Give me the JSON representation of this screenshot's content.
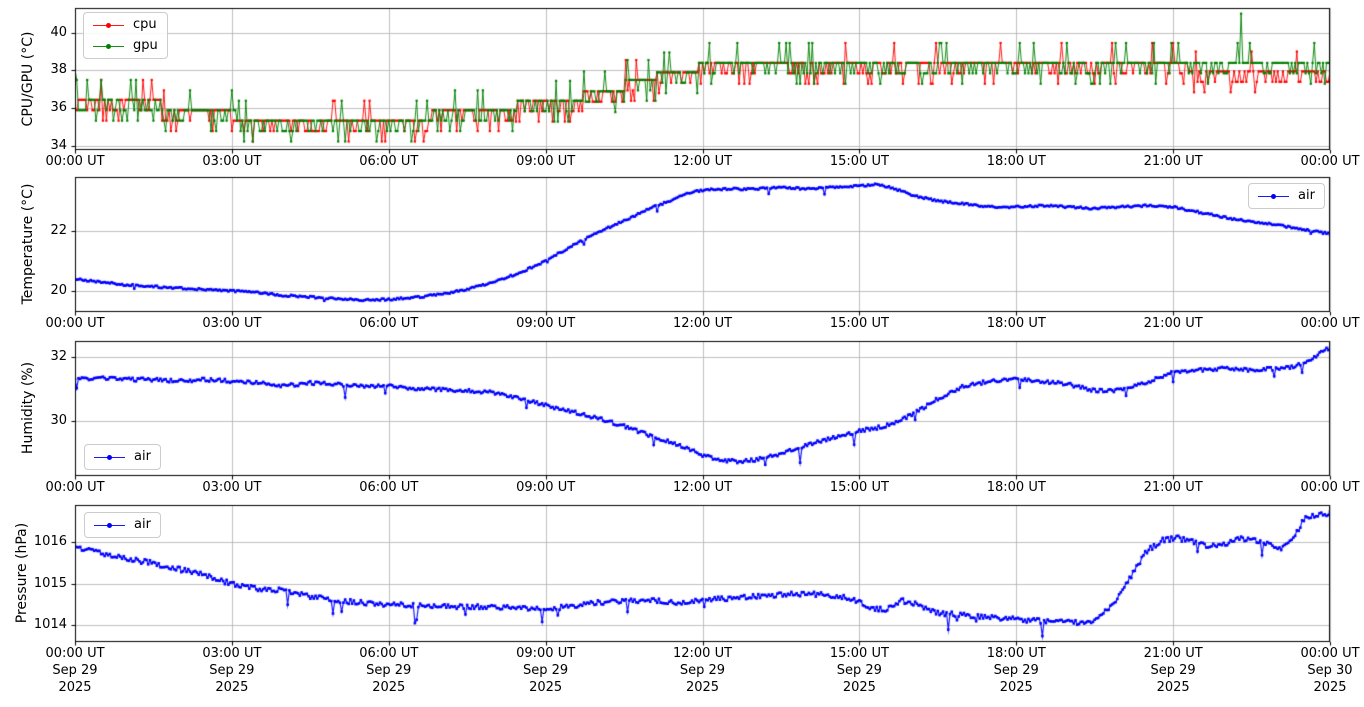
{
  "chart_data": {
    "type": "line",
    "title": "",
    "colors": {
      "cpu": "#ff0000",
      "gpu": "#008000",
      "air": "#0000ff",
      "grid": "#b0b0b0",
      "axis": "#000000",
      "background": "#ffffff",
      "legend_border": "#cccccc"
    },
    "x_axis": {
      "label": "",
      "range_hours": [
        0,
        24
      ],
      "tick_hours": [
        0,
        3,
        6,
        9,
        12,
        15,
        18,
        21,
        24
      ],
      "tick_labels": [
        "00:00 UT",
        "03:00 UT",
        "06:00 UT",
        "09:00 UT",
        "12:00 UT",
        "15:00 UT",
        "18:00 UT",
        "21:00 UT",
        "00:00 UT"
      ],
      "bottom_dates": [
        "Sep 29",
        "Sep 29",
        "Sep 29",
        "Sep 29",
        "Sep 29",
        "Sep 29",
        "Sep 29",
        "Sep 29",
        "Sep 30"
      ],
      "bottom_years": [
        "2025",
        "2025",
        "2025",
        "2025",
        "2025",
        "2025",
        "2025",
        "2025",
        "2025"
      ]
    },
    "panels": [
      {
        "id": "cpu-gpu",
        "ylabel": "CPU/GPU (°C)",
        "ylim": [
          33.8,
          41.3
        ],
        "yticks": [
          34,
          36,
          38,
          40
        ],
        "grid": true,
        "legend": {
          "position": "upper-left",
          "entries": [
            {
              "label": "cpu",
              "color": "#ff0000"
            },
            {
              "label": "gpu",
              "color": "#008000"
            }
          ]
        },
        "series": [
          {
            "name": "cpu",
            "color": "#ff0000",
            "style": "quantized",
            "sample_minutes": 2,
            "baseline_steps": [
              [
                0,
                36.45
              ],
              [
                1.7,
                35.9
              ],
              [
                3.1,
                35.35
              ],
              [
                6.8,
                35.9
              ],
              [
                8.4,
                36.4
              ],
              [
                9.7,
                36.9
              ],
              [
                10.5,
                37.5
              ],
              [
                11.1,
                37.9
              ],
              [
                11.9,
                38.4
              ],
              [
                21.3,
                37.95
              ]
            ],
            "dip_step": 0.55,
            "dip_prob": 0.26,
            "double_dip_prob": 0.08,
            "spike_step": 1.05,
            "spike_prob": 0.035,
            "seed": 7
          },
          {
            "name": "gpu",
            "color": "#008000",
            "style": "quantized",
            "sample_minutes": 2,
            "baseline_steps": [
              [
                0,
                36.45
              ],
              [
                1.7,
                35.9
              ],
              [
                3.1,
                35.35
              ],
              [
                6.8,
                35.9
              ],
              [
                8.4,
                36.4
              ],
              [
                9.7,
                36.9
              ],
              [
                10.5,
                37.5
              ],
              [
                11.1,
                37.9
              ],
              [
                11.9,
                38.4
              ]
            ],
            "dip_step": 0.55,
            "dip_prob": 0.26,
            "double_dip_prob": 0.08,
            "spike_step": 1.05,
            "spike_prob": 0.035,
            "seed": 13,
            "extra_points": [
              [
                0,
                38.05
              ],
              [
                22.3,
                41.0
              ]
            ]
          }
        ]
      },
      {
        "id": "temperature",
        "ylabel": "Temperature (°C)",
        "ylim": [
          19.3,
          23.8
        ],
        "yticks": [
          20,
          22
        ],
        "grid": true,
        "legend": {
          "position": "upper-right",
          "entries": [
            {
              "label": "air",
              "color": "#0000ff"
            }
          ]
        },
        "series": [
          {
            "name": "air",
            "color": "#0000ff",
            "style": "smooth",
            "sample_minutes": 2,
            "keypoints": [
              [
                0,
                20.4
              ],
              [
                0.5,
                20.3
              ],
              [
                1,
                20.2
              ],
              [
                1.5,
                20.15
              ],
              [
                2,
                20.1
              ],
              [
                2.5,
                20.05
              ],
              [
                3,
                20.0
              ],
              [
                3.5,
                19.95
              ],
              [
                4,
                19.85
              ],
              [
                4.5,
                19.8
              ],
              [
                5,
                19.75
              ],
              [
                5.5,
                19.7
              ],
              [
                6,
                19.72
              ],
              [
                6.5,
                19.78
              ],
              [
                7,
                19.9
              ],
              [
                7.5,
                20.05
              ],
              [
                8,
                20.3
              ],
              [
                8.5,
                20.6
              ],
              [
                9,
                21.0
              ],
              [
                9.5,
                21.5
              ],
              [
                10,
                21.95
              ],
              [
                10.5,
                22.35
              ],
              [
                11,
                22.75
              ],
              [
                11.5,
                23.1
              ],
              [
                11.8,
                23.3
              ],
              [
                12.2,
                23.4
              ],
              [
                13,
                23.4
              ],
              [
                13.5,
                23.45
              ],
              [
                14,
                23.4
              ],
              [
                14.5,
                23.45
              ],
              [
                15,
                23.5
              ],
              [
                15.3,
                23.55
              ],
              [
                15.6,
                23.45
              ],
              [
                16,
                23.2
              ],
              [
                16.5,
                23.0
              ],
              [
                17,
                22.9
              ],
              [
                17.5,
                22.8
              ],
              [
                18,
                22.8
              ],
              [
                18.5,
                22.85
              ],
              [
                19,
                22.8
              ],
              [
                19.5,
                22.75
              ],
              [
                20,
                22.8
              ],
              [
                20.5,
                22.85
              ],
              [
                21,
                22.8
              ],
              [
                21.3,
                22.7
              ],
              [
                21.7,
                22.55
              ],
              [
                22,
                22.45
              ],
              [
                22.5,
                22.3
              ],
              [
                23,
                22.2
              ],
              [
                23.5,
                22.05
              ],
              [
                24,
                21.9
              ]
            ],
            "noise": 0.035,
            "spike_down": 0.15,
            "spike_prob": 0.01,
            "seed": 21
          }
        ]
      },
      {
        "id": "humidity",
        "ylabel": "Humidity (%)",
        "ylim": [
          28.3,
          32.5
        ],
        "yticks": [
          30,
          32
        ],
        "grid": true,
        "legend": {
          "position": "lower-left",
          "entries": [
            {
              "label": "air",
              "color": "#0000ff"
            }
          ]
        },
        "series": [
          {
            "name": "air",
            "color": "#0000ff",
            "style": "smooth",
            "sample_minutes": 2,
            "keypoints": [
              [
                0,
                31.3
              ],
              [
                0.5,
                31.35
              ],
              [
                1,
                31.3
              ],
              [
                1.5,
                31.3
              ],
              [
                2,
                31.25
              ],
              [
                2.5,
                31.3
              ],
              [
                3,
                31.25
              ],
              [
                3.5,
                31.2
              ],
              [
                4,
                31.1
              ],
              [
                4.5,
                31.2
              ],
              [
                5,
                31.15
              ],
              [
                5.5,
                31.1
              ],
              [
                6,
                31.1
              ],
              [
                6.5,
                31.0
              ],
              [
                7,
                31.0
              ],
              [
                7.5,
                30.95
              ],
              [
                8,
                30.9
              ],
              [
                8.5,
                30.7
              ],
              [
                9,
                30.5
              ],
              [
                9.5,
                30.3
              ],
              [
                10,
                30.1
              ],
              [
                10.5,
                29.85
              ],
              [
                11,
                29.55
              ],
              [
                11.5,
                29.3
              ],
              [
                12,
                28.95
              ],
              [
                12.3,
                28.8
              ],
              [
                12.7,
                28.75
              ],
              [
                13,
                28.8
              ],
              [
                13.5,
                29.0
              ],
              [
                14,
                29.25
              ],
              [
                14.5,
                29.5
              ],
              [
                15,
                29.7
              ],
              [
                15.5,
                29.85
              ],
              [
                16,
                30.2
              ],
              [
                16.5,
                30.7
              ],
              [
                17,
                31.1
              ],
              [
                17.5,
                31.25
              ],
              [
                18,
                31.3
              ],
              [
                18.5,
                31.25
              ],
              [
                19,
                31.15
              ],
              [
                19.5,
                30.95
              ],
              [
                19.8,
                30.95
              ],
              [
                20,
                31.0
              ],
              [
                20.5,
                31.2
              ],
              [
                21,
                31.55
              ],
              [
                21.5,
                31.6
              ],
              [
                22,
                31.65
              ],
              [
                22.5,
                31.6
              ],
              [
                23,
                31.65
              ],
              [
                23.3,
                31.7
              ],
              [
                23.6,
                31.9
              ],
              [
                24,
                32.3
              ]
            ],
            "noise": 0.055,
            "spike_down": 0.3,
            "spike_prob": 0.02,
            "seed": 33
          }
        ]
      },
      {
        "id": "pressure",
        "ylabel": "Pressure (hPa)",
        "ylim": [
          1013.6,
          1016.9
        ],
        "yticks": [
          1014,
          1015,
          1016
        ],
        "grid": true,
        "legend": {
          "position": "upper-left",
          "entries": [
            {
              "label": "air",
              "color": "#0000ff"
            }
          ]
        },
        "series": [
          {
            "name": "air",
            "color": "#0000ff",
            "style": "smooth",
            "sample_minutes": 2,
            "keypoints": [
              [
                0,
                1015.9
              ],
              [
                0.5,
                1015.75
              ],
              [
                1,
                1015.6
              ],
              [
                1.5,
                1015.5
              ],
              [
                2,
                1015.35
              ],
              [
                2.5,
                1015.2
              ],
              [
                3,
                1015.0
              ],
              [
                3.5,
                1014.88
              ],
              [
                4,
                1014.85
              ],
              [
                4.5,
                1014.7
              ],
              [
                5,
                1014.6
              ],
              [
                5.5,
                1014.55
              ],
              [
                6,
                1014.5
              ],
              [
                6.5,
                1014.48
              ],
              [
                7,
                1014.45
              ],
              [
                8,
                1014.45
              ],
              [
                9,
                1014.4
              ],
              [
                9.5,
                1014.45
              ],
              [
                10,
                1014.55
              ],
              [
                10.5,
                1014.6
              ],
              [
                11,
                1014.6
              ],
              [
                11.5,
                1014.55
              ],
              [
                12,
                1014.6
              ],
              [
                12.5,
                1014.65
              ],
              [
                13,
                1014.7
              ],
              [
                13.7,
                1014.75
              ],
              [
                14.3,
                1014.75
              ],
              [
                14.8,
                1014.65
              ],
              [
                15.2,
                1014.45
              ],
              [
                15.5,
                1014.35
              ],
              [
                15.8,
                1014.6
              ],
              [
                16.1,
                1014.5
              ],
              [
                16.5,
                1014.3
              ],
              [
                17,
                1014.25
              ],
              [
                17.5,
                1014.2
              ],
              [
                18,
                1014.15
              ],
              [
                18.5,
                1014.1
              ],
              [
                19,
                1014.1
              ],
              [
                19.3,
                1014.05
              ],
              [
                19.6,
                1014.2
              ],
              [
                19.9,
                1014.6
              ],
              [
                20.2,
                1015.2
              ],
              [
                20.5,
                1015.8
              ],
              [
                20.8,
                1016.05
              ],
              [
                21.1,
                1016.1
              ],
              [
                21.4,
                1016.0
              ],
              [
                21.7,
                1015.9
              ],
              [
                22,
                1015.95
              ],
              [
                22.3,
                1016.1
              ],
              [
                22.6,
                1016.05
              ],
              [
                22.9,
                1015.9
              ],
              [
                23.1,
                1015.85
              ],
              [
                23.3,
                1016.1
              ],
              [
                23.5,
                1016.55
              ],
              [
                23.7,
                1016.65
              ],
              [
                24,
                1016.7
              ]
            ],
            "noise": 0.06,
            "spike_down": 0.25,
            "spike_prob": 0.02,
            "seed": 47
          }
        ]
      }
    ]
  }
}
